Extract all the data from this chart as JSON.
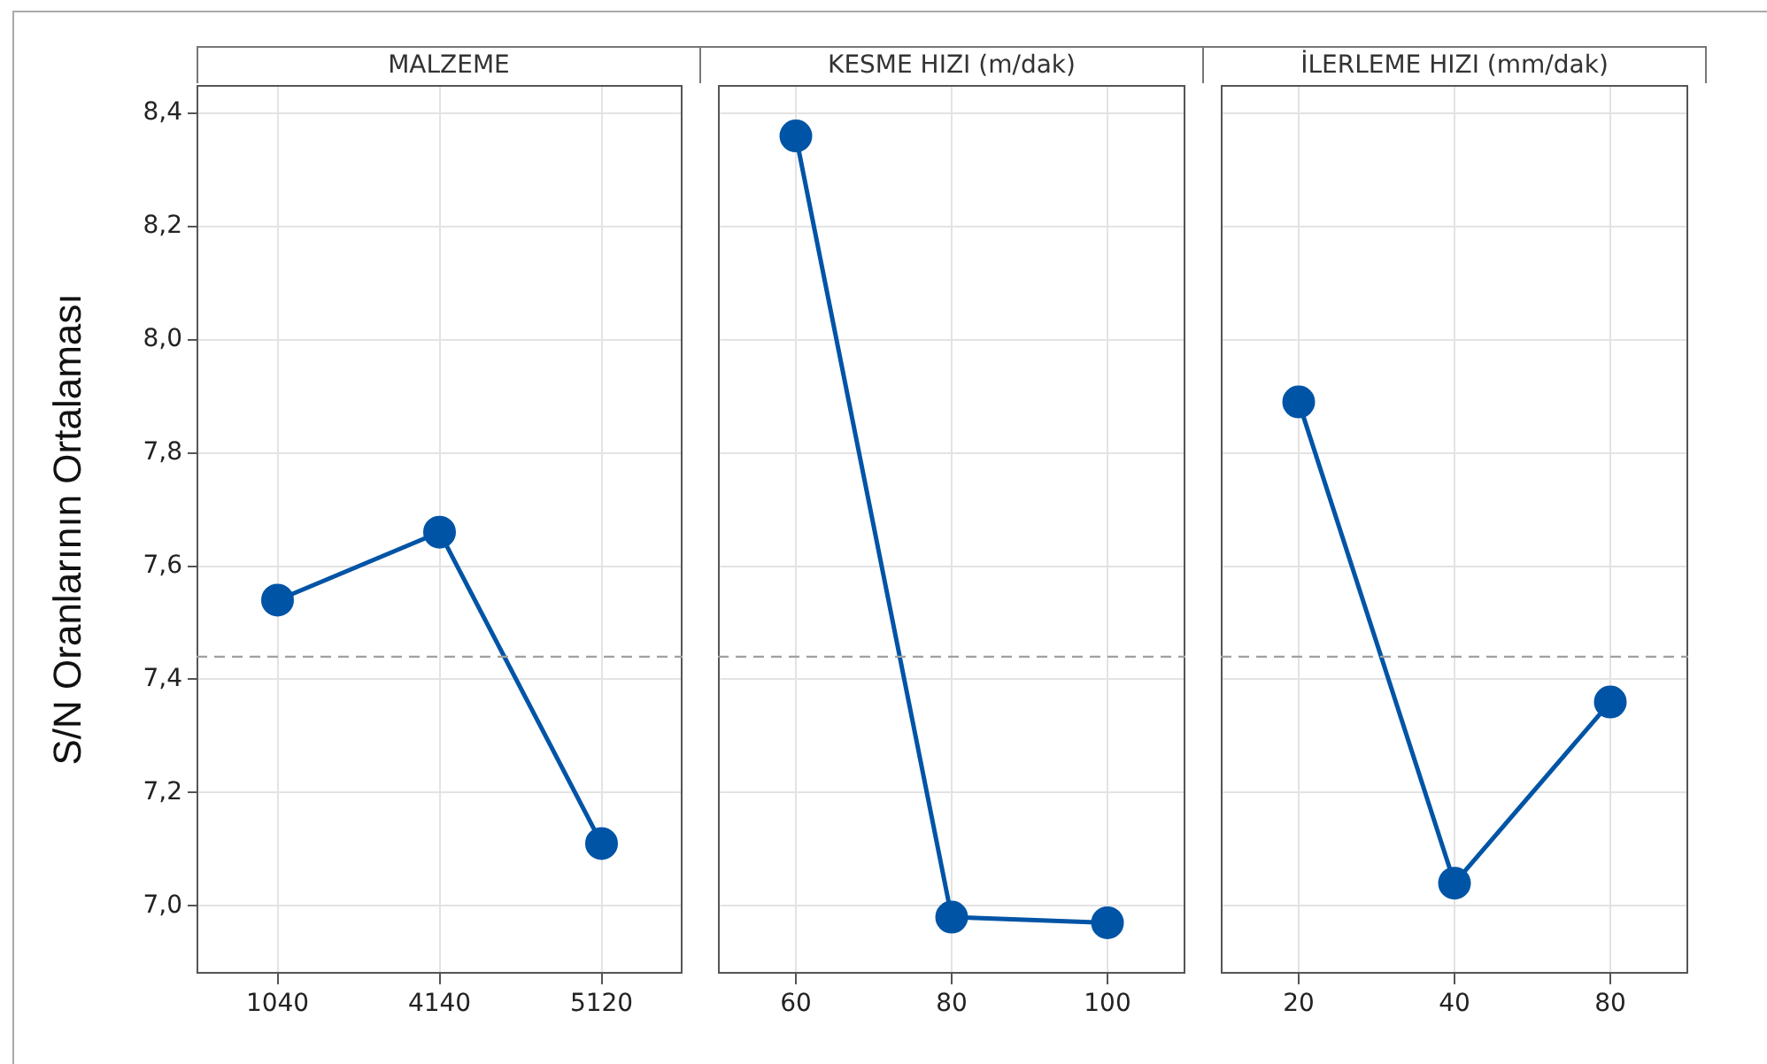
{
  "chart_data": [
    {
      "type": "line",
      "title": "MALZEME",
      "ylabel": "S/N Oranlarının Ortalaması",
      "categories": [
        "1040",
        "4140",
        "5120"
      ],
      "series": [
        {
          "color": "#0054a6",
          "values": [
            7.54,
            7.66,
            7.11
          ]
        }
      ],
      "ylim": [
        6.88,
        8.45
      ],
      "yticks": [
        {
          "value": 7.0,
          "label": "7,0"
        },
        {
          "value": 7.2,
          "label": "7,2"
        },
        {
          "value": 7.4,
          "label": "7,4"
        },
        {
          "value": 7.6,
          "label": "7,6"
        },
        {
          "value": 7.8,
          "label": "7,8"
        },
        {
          "value": 8.0,
          "label": "8,0"
        },
        {
          "value": 8.2,
          "label": "8,2"
        },
        {
          "value": 8.4,
          "label": "8,4"
        }
      ],
      "ref_lines": [
        {
          "axis": "y",
          "value": 7.44,
          "line_style": "dashed"
        }
      ],
      "grid": true,
      "marker": "circle",
      "line_style": "solid"
    },
    {
      "type": "line",
      "title": "KESME HIZI (m/dak)",
      "categories": [
        "60",
        "80",
        "100"
      ],
      "series": [
        {
          "color": "#0054a6",
          "values": [
            8.36,
            6.98,
            6.97
          ]
        }
      ],
      "ylim": [
        6.88,
        8.45
      ],
      "yticks": [
        7.0,
        7.2,
        7.4,
        7.6,
        7.8,
        8.0,
        8.2,
        8.4
      ],
      "tick_labels": "x",
      "ref_lines": [
        {
          "axis": "y",
          "value": 7.44,
          "line_style": "dashed"
        }
      ],
      "grid": true,
      "marker": "circle",
      "line_style": "solid"
    },
    {
      "type": "line",
      "title": "İLERLEME HIZI (mm/dak)",
      "categories": [
        "20",
        "40",
        "80"
      ],
      "series": [
        {
          "color": "#0054a6",
          "values": [
            7.89,
            7.04,
            7.36
          ]
        }
      ],
      "ylim": [
        6.88,
        8.45
      ],
      "yticks": [
        7.0,
        7.2,
        7.4,
        7.6,
        7.8,
        8.0,
        8.2,
        8.4
      ],
      "tick_labels": "x",
      "ref_lines": [
        {
          "axis": "y",
          "value": 7.44,
          "line_style": "dashed"
        }
      ],
      "grid": true,
      "marker": "circle",
      "line_style": "solid"
    }
  ]
}
